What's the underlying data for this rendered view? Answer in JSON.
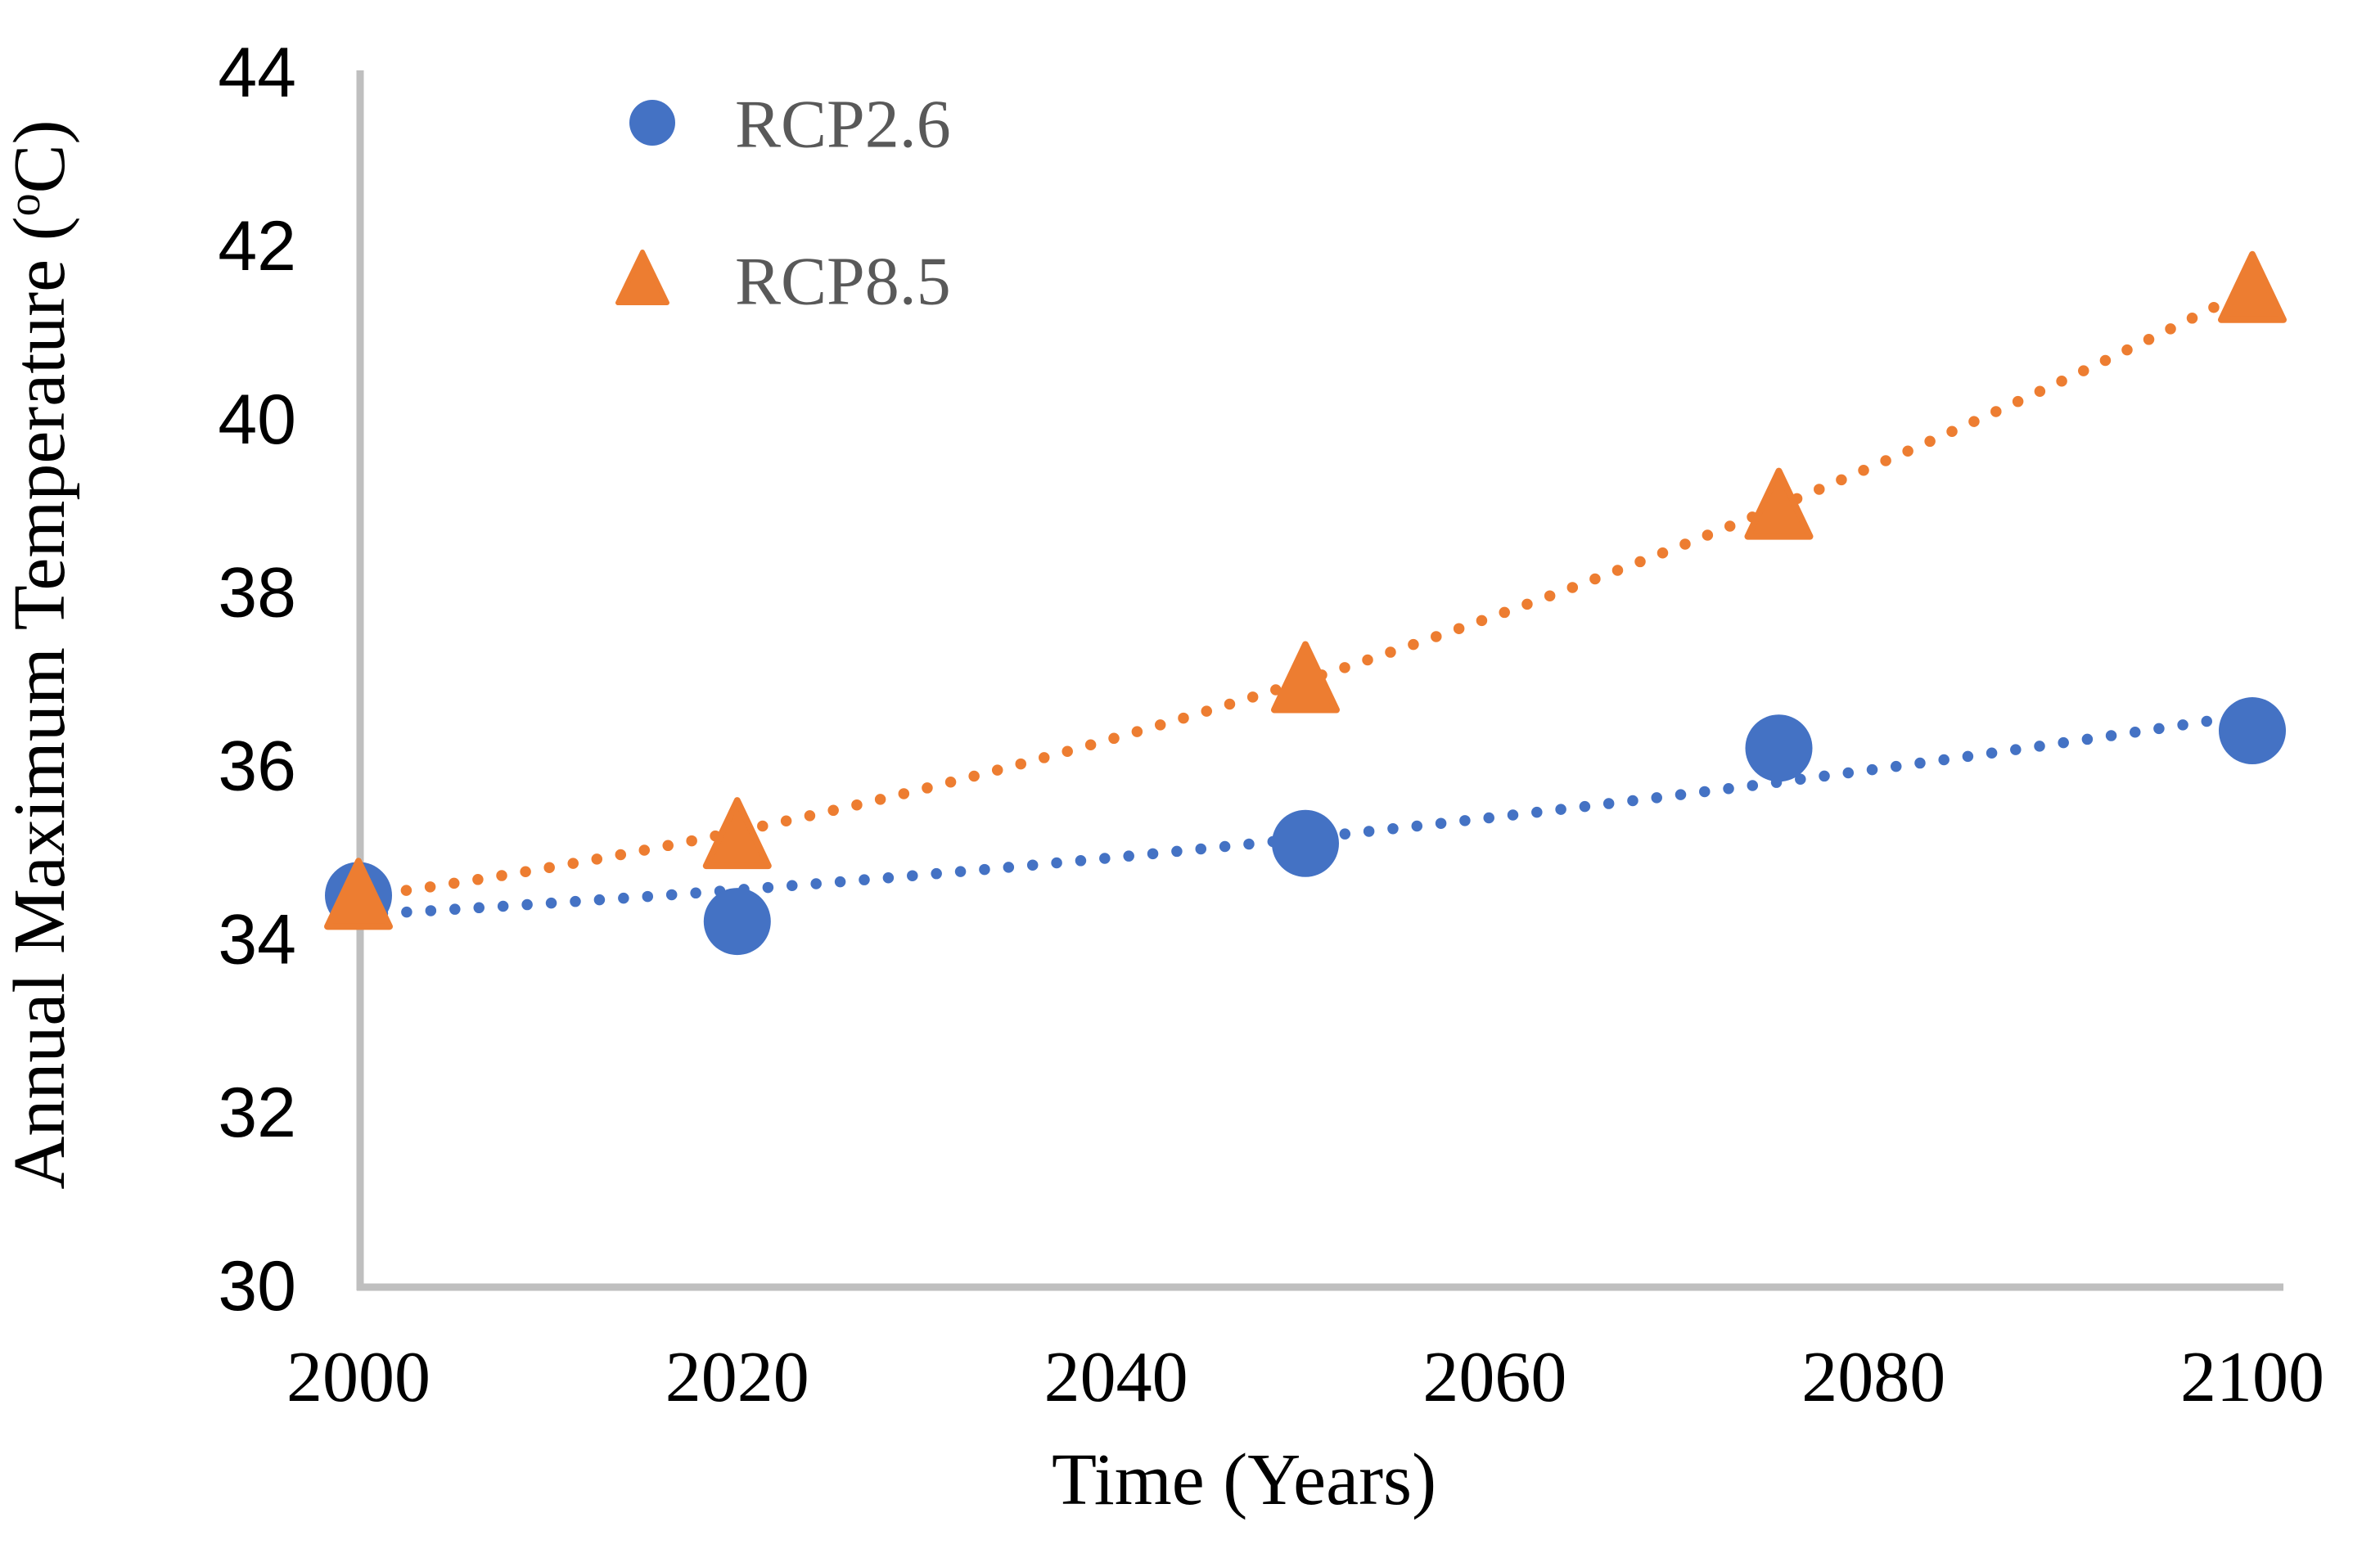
{
  "chart_data": {
    "type": "scatter",
    "title": "",
    "xlabel": "Time (Years)",
    "ylabel_prefix": "Annual Maximum Temperature (",
    "ylabel_sup": "o",
    "ylabel_suffix": "C)",
    "x_ticks": [
      "2000",
      "2020",
      "2040",
      "2060",
      "2080",
      "2100"
    ],
    "y_ticks": [
      "30",
      "32",
      "34",
      "36",
      "38",
      "40",
      "42",
      "44"
    ],
    "xlim": [
      2000,
      2100
    ],
    "ylim": [
      30,
      44
    ],
    "grid": false,
    "legend_position": "inside-top-left",
    "series": [
      {
        "name": "RCP2.6",
        "marker": "circle",
        "color": "#4472C4",
        "trendline": "dotted",
        "x": [
          2000,
          2020,
          2050,
          2075,
          2100
        ],
        "y": [
          34.5,
          34.2,
          35.1,
          36.2,
          36.4
        ]
      },
      {
        "name": "RCP8.5",
        "marker": "triangle",
        "color": "#ED7D31",
        "trendline": "dotted",
        "x": [
          2000,
          2020,
          2050,
          2075,
          2100
        ],
        "y": [
          34.5,
          35.2,
          37.0,
          39.0,
          41.5
        ]
      }
    ],
    "colors": {
      "axis_line": "#BFBFBF",
      "tick_label": "#000000",
      "legend_text": "#595959",
      "background": "#FFFFFF"
    }
  }
}
